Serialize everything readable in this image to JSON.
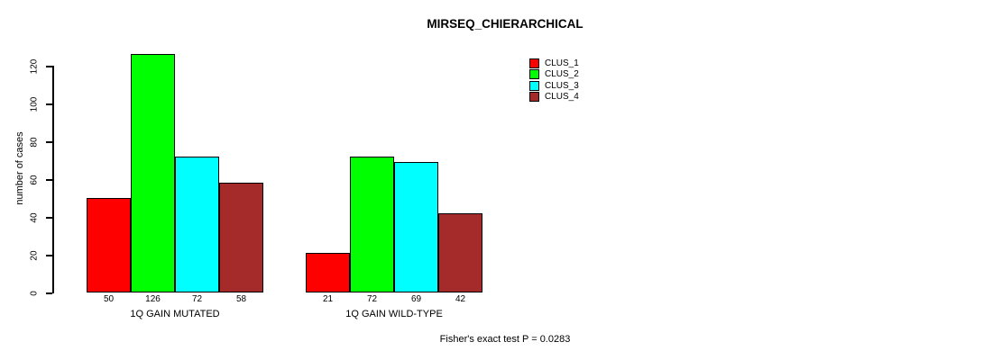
{
  "title": "MIRSEQ_CHIERARCHICAL",
  "chart_data": {
    "type": "bar",
    "title": "MIRSEQ_CHIERARCHICAL",
    "ylabel": "number of cases",
    "xlabel": "",
    "categories": [
      "1Q GAIN MUTATED",
      "1Q GAIN WILD-TYPE"
    ],
    "series": [
      {
        "name": "CLUS_1",
        "color": "#FF0000",
        "values": [
          50,
          21
        ]
      },
      {
        "name": "CLUS_2",
        "color": "#00FF00",
        "values": [
          126,
          72
        ]
      },
      {
        "name": "CLUS_3",
        "color": "#00FFFF",
        "values": [
          72,
          69
        ]
      },
      {
        "name": "CLUS_4",
        "color": "#A52A2A",
        "values": [
          58,
          42
        ]
      }
    ],
    "yticks": [
      0,
      20,
      40,
      60,
      80,
      100,
      120
    ],
    "ylim": [
      0,
      126
    ],
    "grid": false,
    "bar_value_labels": true,
    "legend_position": "top-right",
    "annotation": "Fisher's exact test P = 0.0283"
  }
}
